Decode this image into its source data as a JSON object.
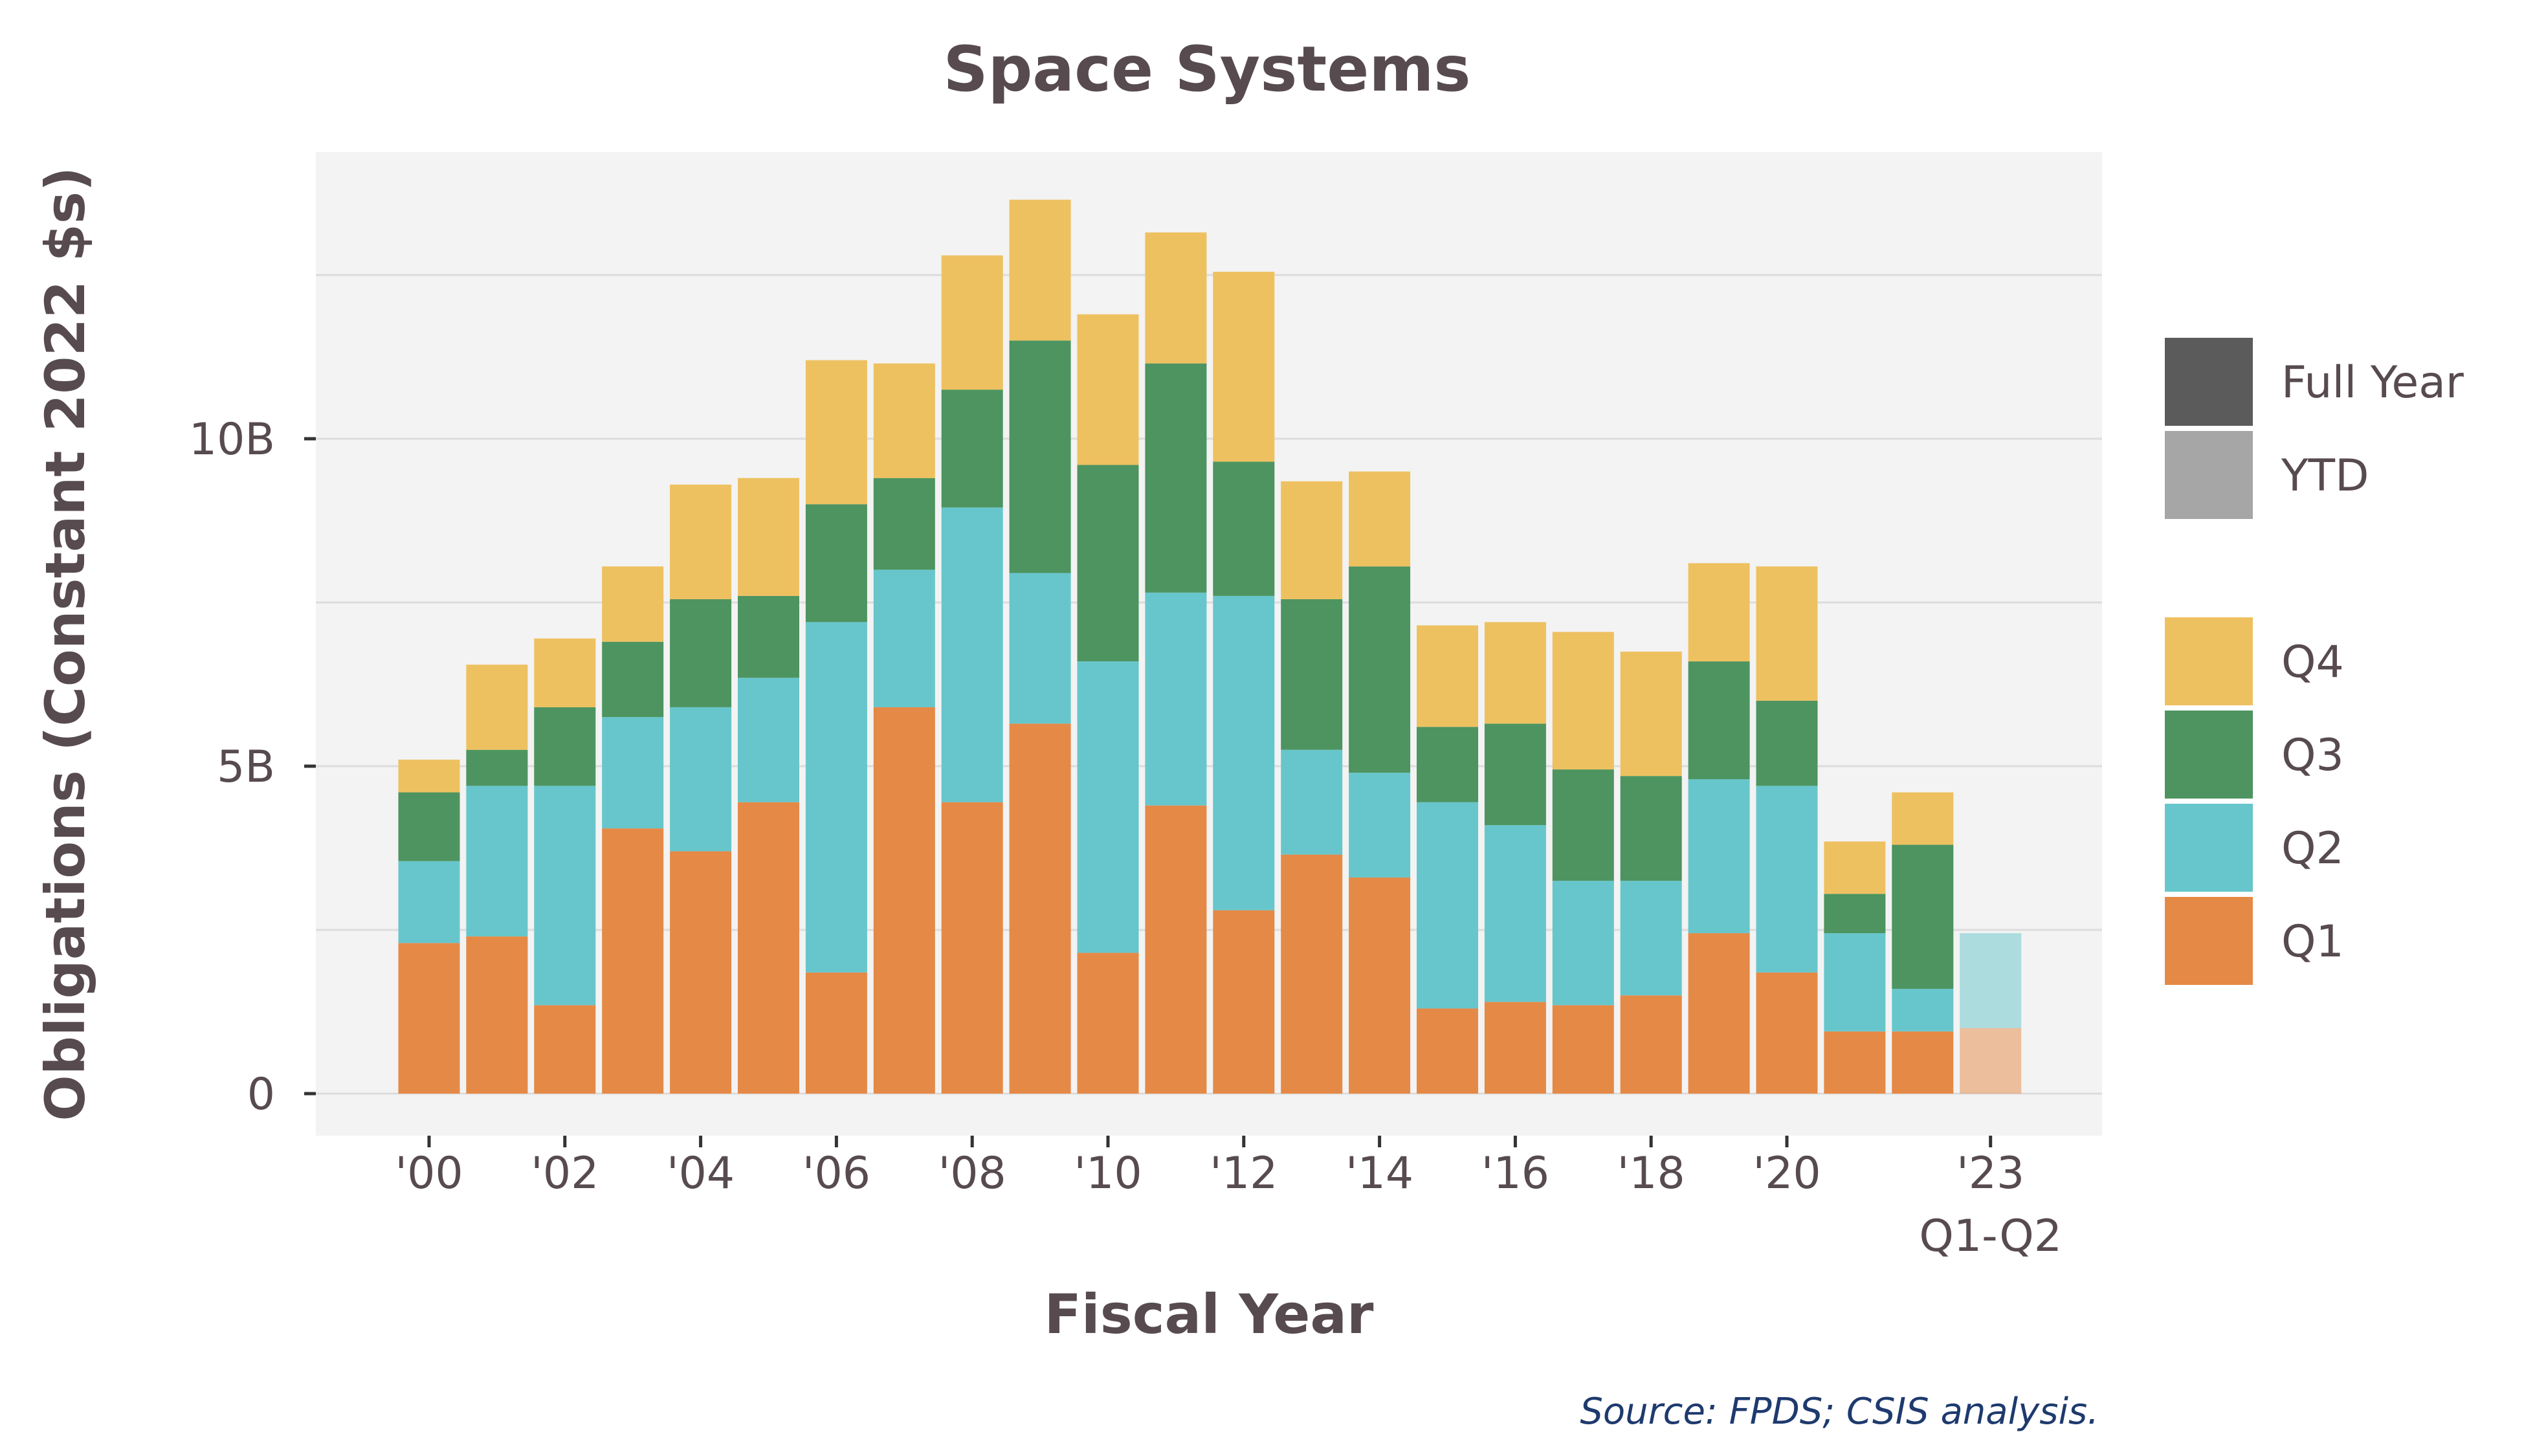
{
  "chart_data": {
    "type": "bar",
    "stacked": true,
    "title": "Space Systems",
    "xlabel": "Fiscal Year",
    "ylabel": "Obligations (Constant 2022 $s)",
    "ylim": [
      0,
      14
    ],
    "y_unit": "billions",
    "y_ticks": [
      0,
      5,
      10
    ],
    "y_tick_labels": [
      "0",
      "5B",
      "10B"
    ],
    "grid": true,
    "categories": [
      "2000",
      "2001",
      "2002",
      "2003",
      "2004",
      "2005",
      "2006",
      "2007",
      "2008",
      "2009",
      "2010",
      "2011",
      "2012",
      "2013",
      "2014",
      "2015",
      "2016",
      "2017",
      "2018",
      "2019",
      "2020",
      "2021",
      "2022",
      "2023 Q1-Q2"
    ],
    "x_tick_labels": [
      {
        "category": "2000",
        "label": "'00"
      },
      {
        "category": "2002",
        "label": "'02"
      },
      {
        "category": "2004",
        "label": "'04"
      },
      {
        "category": "2006",
        "label": "'06"
      },
      {
        "category": "2008",
        "label": "'08"
      },
      {
        "category": "2010",
        "label": "'10"
      },
      {
        "category": "2012",
        "label": "'12"
      },
      {
        "category": "2014",
        "label": "'14"
      },
      {
        "category": "2016",
        "label": "'16"
      },
      {
        "category": "2018",
        "label": "'18"
      },
      {
        "category": "2020",
        "label": "'20"
      },
      {
        "category": "2023 Q1-Q2",
        "label": "'23",
        "sublabel": "Q1-Q2"
      }
    ],
    "ytd_categories": [
      "2023 Q1-Q2"
    ],
    "series": [
      {
        "name": "Q1",
        "color": "#e58946",
        "values": [
          2.3,
          2.4,
          1.35,
          4.05,
          3.7,
          4.45,
          1.85,
          5.9,
          4.45,
          5.65,
          2.15,
          4.4,
          2.8,
          3.65,
          3.3,
          1.3,
          1.4,
          1.35,
          1.5,
          2.45,
          1.85,
          0.95,
          0.95,
          1.0
        ]
      },
      {
        "name": "Q2",
        "color": "#67c6cb",
        "values": [
          1.25,
          2.3,
          3.35,
          1.7,
          2.2,
          1.9,
          5.35,
          2.1,
          4.5,
          2.3,
          4.45,
          3.25,
          4.8,
          1.6,
          1.6,
          3.15,
          2.7,
          1.9,
          1.75,
          2.35,
          2.85,
          1.5,
          0.65,
          1.45
        ]
      },
      {
        "name": "Q3",
        "color": "#4d9460",
        "values": [
          1.05,
          0.55,
          1.2,
          1.15,
          1.65,
          1.25,
          1.8,
          1.4,
          1.8,
          3.55,
          3.0,
          3.5,
          2.05,
          2.3,
          3.15,
          1.15,
          1.55,
          1.7,
          1.6,
          1.8,
          1.3,
          0.6,
          2.2,
          0
        ]
      },
      {
        "name": "Q4",
        "color": "#eec160",
        "values": [
          0.5,
          1.3,
          1.05,
          1.15,
          1.75,
          1.8,
          2.2,
          1.75,
          2.05,
          2.15,
          2.3,
          2.0,
          2.9,
          1.8,
          1.45,
          1.55,
          1.55,
          2.1,
          1.9,
          1.5,
          2.05,
          0.8,
          0.8,
          0
        ]
      }
    ],
    "legend": {
      "placement": "right",
      "groups": [
        [
          {
            "label": "Full Year",
            "color": "#5b5b5b"
          },
          {
            "label": "YTD",
            "color": "#a6a6a6"
          }
        ],
        [
          {
            "label": "Q4",
            "color": "#eec160"
          },
          {
            "label": "Q3",
            "color": "#4d9460"
          },
          {
            "label": "Q2",
            "color": "#67c6cb"
          },
          {
            "label": "Q1",
            "color": "#e58946"
          }
        ]
      ]
    },
    "source": "Source: FPDS; CSIS analysis.",
    "colors": {
      "panel_background": "#f3f3f3",
      "gridline": "#dcdcdc",
      "text": "#574b50",
      "source_text": "#1e3a6e"
    }
  }
}
